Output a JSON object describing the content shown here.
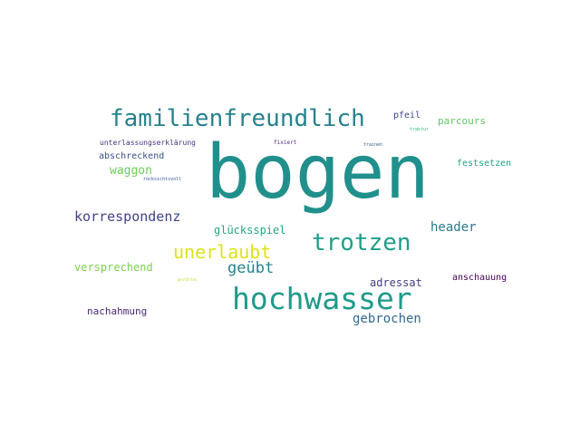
{
  "word_cloud": {
    "words": [
      {
        "text": "bogen",
        "color": "#21908c"
      },
      {
        "text": "familienfreundlich",
        "color": "#26828e"
      },
      {
        "text": "hochwasser",
        "color": "#1f9a8a"
      },
      {
        "text": "trotzen",
        "color": "#1f9e89"
      },
      {
        "text": "unerlaubt",
        "color": "#dde318"
      },
      {
        "text": "korrespondenz",
        "color": "#414487"
      },
      {
        "text": "geübt",
        "color": "#26828e"
      },
      {
        "text": "header",
        "color": "#2a788e"
      },
      {
        "text": "gebrochen",
        "color": "#31688e"
      },
      {
        "text": "versprechend",
        "color": "#7ad151"
      },
      {
        "text": "glücksspiel",
        "color": "#22a884"
      },
      {
        "text": "adressat",
        "color": "#433e85"
      },
      {
        "text": "waggon",
        "color": "#6ccd5a"
      },
      {
        "text": "nachahmung",
        "color": "#482878"
      },
      {
        "text": "anschauung",
        "color": "#440154"
      },
      {
        "text": "abschreckend",
        "color": "#3b528b"
      },
      {
        "text": "festsetzen",
        "color": "#20a486"
      },
      {
        "text": "parcours",
        "color": "#5ec962"
      },
      {
        "text": "pfeil",
        "color": "#3e4989"
      },
      {
        "text": "unterlassungserklärung",
        "color": "#46327e"
      },
      {
        "text": "fixiert",
        "color": "#472f7d"
      },
      {
        "text": "trainen",
        "color": "#38598c"
      },
      {
        "text": "traktur",
        "color": "#35b779"
      },
      {
        "text": "rücksichtsvoll",
        "color": "#3b528b"
      },
      {
        "text": "gestörtes",
        "color": "#b5de2b"
      }
    ]
  }
}
